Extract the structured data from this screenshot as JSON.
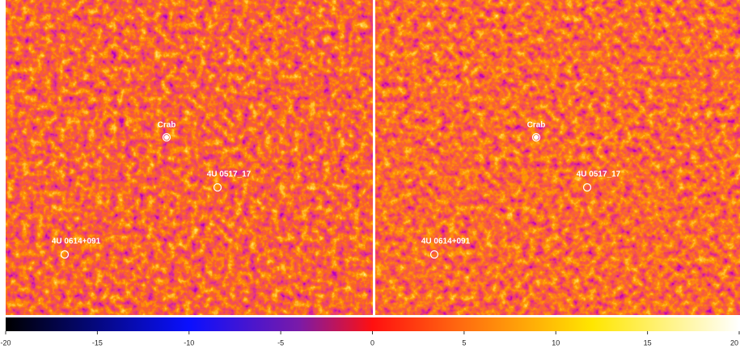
{
  "panels": [
    {
      "sources": [
        {
          "label": "Crab"
        },
        {
          "label": "4U 0517_17"
        },
        {
          "label": "4U 0614+091"
        }
      ]
    },
    {
      "sources": [
        {
          "label": "Crab"
        },
        {
          "label": "4U 0517_17"
        },
        {
          "label": "4U 0614+091"
        }
      ]
    }
  ],
  "colorbar": {
    "range": [
      -20,
      20
    ],
    "ticks": [
      -20,
      -15,
      -10,
      -5,
      0,
      5,
      10,
      15,
      20
    ]
  }
}
